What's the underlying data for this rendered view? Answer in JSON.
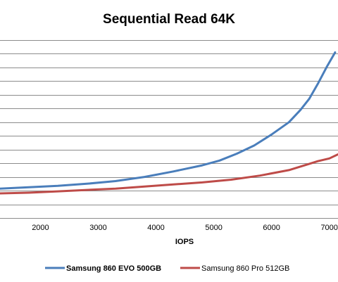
{
  "chart_data": {
    "type": "line",
    "title": "Sequential Read 64K",
    "xlabel": "IOPS",
    "ylabel": "",
    "xlim": [
      1300,
      7150
    ],
    "ylim": [
      0,
      13
    ],
    "x_ticks": [
      2000,
      3000,
      4000,
      5000,
      6000,
      7000
    ],
    "x_tick_labels": [
      "2000",
      "3000",
      "4000",
      "5000",
      "6000",
      "7000"
    ],
    "y_gridline_values": [
      0,
      1,
      2,
      3,
      4,
      5,
      6,
      7,
      8,
      9,
      10,
      11,
      12,
      13
    ],
    "grid": "horizontal",
    "legend_position": "bottom",
    "series": [
      {
        "name": "Samsung 860 EVO 500GB",
        "color": "#4a7ebb",
        "points": [
          [
            1300,
            2.15
          ],
          [
            1800,
            2.25
          ],
          [
            2300,
            2.35
          ],
          [
            2800,
            2.5
          ],
          [
            3300,
            2.7
          ],
          [
            3800,
            3.0
          ],
          [
            4300,
            3.4
          ],
          [
            4800,
            3.85
          ],
          [
            5100,
            4.2
          ],
          [
            5400,
            4.7
          ],
          [
            5700,
            5.3
          ],
          [
            6000,
            6.1
          ],
          [
            6300,
            7.0
          ],
          [
            6500,
            7.9
          ],
          [
            6650,
            8.7
          ],
          [
            6800,
            9.8
          ],
          [
            6950,
            11.0
          ],
          [
            7100,
            12.1
          ]
        ]
      },
      {
        "name": "Samsung 860 Pro 512GB",
        "color": "#be4b48",
        "points": [
          [
            1300,
            1.8
          ],
          [
            1800,
            1.85
          ],
          [
            2300,
            1.95
          ],
          [
            2800,
            2.05
          ],
          [
            3300,
            2.15
          ],
          [
            3800,
            2.3
          ],
          [
            4300,
            2.45
          ],
          [
            4800,
            2.6
          ],
          [
            5300,
            2.8
          ],
          [
            5800,
            3.1
          ],
          [
            6300,
            3.5
          ],
          [
            6650,
            3.95
          ],
          [
            6800,
            4.15
          ],
          [
            7000,
            4.35
          ],
          [
            7150,
            4.65
          ]
        ]
      }
    ]
  }
}
